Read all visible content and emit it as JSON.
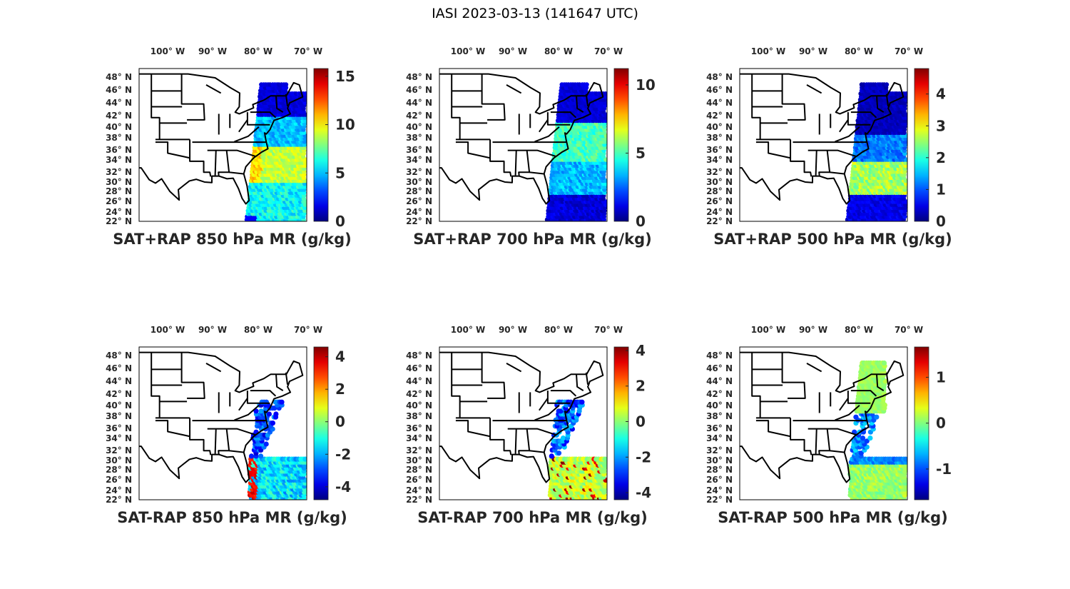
{
  "figure_title": "IASI 2023-03-13 (141647 UTC)",
  "lon_labels": [
    "100° W",
    "90° W",
    "80° W",
    "70° W"
  ],
  "lat_labels": [
    "48° N",
    "46° N",
    "44° N",
    "42° N",
    "40° N",
    "38° N",
    "36° N",
    "34° N",
    "32° N",
    "30° N",
    "28° N",
    "26° N",
    "24° N",
    "22° N"
  ],
  "chart_data": [
    {
      "type": "heatmap",
      "title": "SAT+RAP 850 hPa MR (g/kg)",
      "clim": [
        0,
        15.8
      ],
      "ticks": [
        0,
        5,
        10,
        15
      ],
      "colormap": "jet",
      "kind": "total",
      "level": 850
    },
    {
      "type": "heatmap",
      "title": "SAT+RAP 700 hPa MR (g/kg)",
      "clim": [
        0,
        11.2
      ],
      "ticks": [
        0,
        5,
        10
      ],
      "colormap": "jet",
      "kind": "total",
      "level": 700
    },
    {
      "type": "heatmap",
      "title": "SAT+RAP 500 hPa MR (g/kg)",
      "clim": [
        0,
        4.8
      ],
      "ticks": [
        0,
        1,
        2,
        3,
        4
      ],
      "colormap": "jet",
      "kind": "total",
      "level": 500
    },
    {
      "type": "heatmap",
      "title": "SAT-RAP 850 hPa MR (g/kg)",
      "clim": [
        -4.8,
        4.6
      ],
      "ticks": [
        -4,
        -2,
        0,
        2,
        4
      ],
      "colormap": "jet",
      "kind": "diff",
      "level": 850
    },
    {
      "type": "heatmap",
      "title": "SAT-RAP 700 hPa MR (g/kg)",
      "clim": [
        -4.4,
        4.2
      ],
      "ticks": [
        -4,
        -2,
        0,
        2,
        4
      ],
      "colormap": "jet",
      "kind": "diff",
      "level": 700
    },
    {
      "type": "heatmap",
      "title": "SAT-RAP 500 hPa MR (g/kg)",
      "clim": [
        -1.67,
        1.66
      ],
      "ticks": [
        -1,
        0,
        1
      ],
      "colormap": "jet",
      "kind": "diff",
      "level": 500
    }
  ]
}
